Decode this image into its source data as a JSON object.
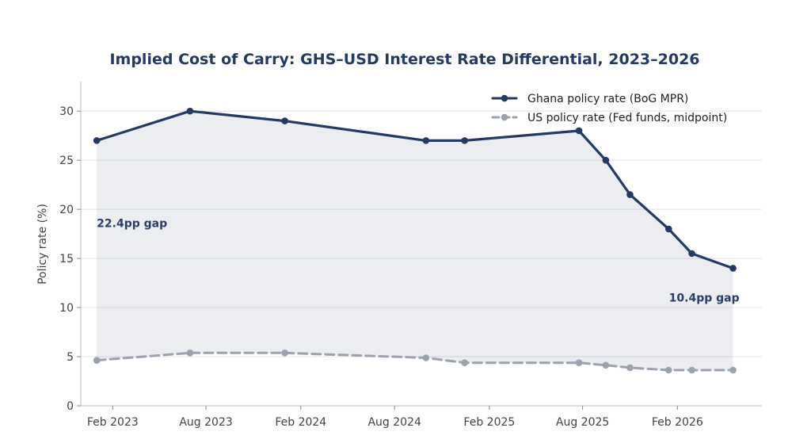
{
  "chart_data": {
    "type": "line",
    "title": "Implied Cost of Carry: GHS–USD Interest Rate Differential, 2023–2026",
    "xlabel": "",
    "ylabel": "Policy rate (%)",
    "ylim": [
      0,
      33
    ],
    "yticks": [
      0,
      5,
      10,
      15,
      20,
      25,
      30
    ],
    "xlim": [
      "2022-12-01",
      "2026-07-15"
    ],
    "xticks": [
      {
        "date": "2023-02-01",
        "label": "Feb 2023"
      },
      {
        "date": "2023-08-01",
        "label": "Aug 2023"
      },
      {
        "date": "2024-02-01",
        "label": "Feb 2024"
      },
      {
        "date": "2024-08-01",
        "label": "Aug 2024"
      },
      {
        "date": "2025-02-01",
        "label": "Feb 2025"
      },
      {
        "date": "2025-08-01",
        "label": "Aug 2025"
      },
      {
        "date": "2026-02-01",
        "label": "Feb 2026"
      }
    ],
    "grid": "horizontal",
    "legend": "top-right",
    "shaded_gap": true,
    "series": [
      {
        "name": "Ghana policy rate (BoG MPR)",
        "color": "#253a62",
        "style": "solid",
        "points": [
          {
            "x": "2023-01-01",
            "y": 27.0
          },
          {
            "x": "2023-07-01",
            "y": 30.0
          },
          {
            "x": "2024-01-01",
            "y": 29.0
          },
          {
            "x": "2024-10-01",
            "y": 27.0
          },
          {
            "x": "2024-12-15",
            "y": 27.0
          },
          {
            "x": "2025-07-25",
            "y": 28.0
          },
          {
            "x": "2025-09-15",
            "y": 25.0
          },
          {
            "x": "2025-11-01",
            "y": 21.5
          },
          {
            "x": "2026-01-15",
            "y": 18.0
          },
          {
            "x": "2026-03-01",
            "y": 15.5
          },
          {
            "x": "2026-05-20",
            "y": 14.0
          }
        ]
      },
      {
        "name": "US policy rate (Fed funds, midpoint)",
        "color": "#9ca2ad",
        "style": "dashed",
        "points": [
          {
            "x": "2023-01-01",
            "y": 4.63
          },
          {
            "x": "2023-07-01",
            "y": 5.38
          },
          {
            "x": "2024-01-01",
            "y": 5.38
          },
          {
            "x": "2024-10-01",
            "y": 4.88
          },
          {
            "x": "2024-12-15",
            "y": 4.38
          },
          {
            "x": "2025-07-25",
            "y": 4.38
          },
          {
            "x": "2025-09-15",
            "y": 4.13
          },
          {
            "x": "2025-11-01",
            "y": 3.88
          },
          {
            "x": "2026-01-15",
            "y": 3.63
          },
          {
            "x": "2026-03-01",
            "y": 3.63
          },
          {
            "x": "2026-05-20",
            "y": 3.63
          }
        ]
      }
    ],
    "annotations": [
      {
        "text": "22.4pp gap",
        "x": "2023-01-01",
        "y": 18.2
      },
      {
        "text": "10.4pp gap",
        "x": "2026-03-25",
        "y": 10.6
      }
    ]
  }
}
